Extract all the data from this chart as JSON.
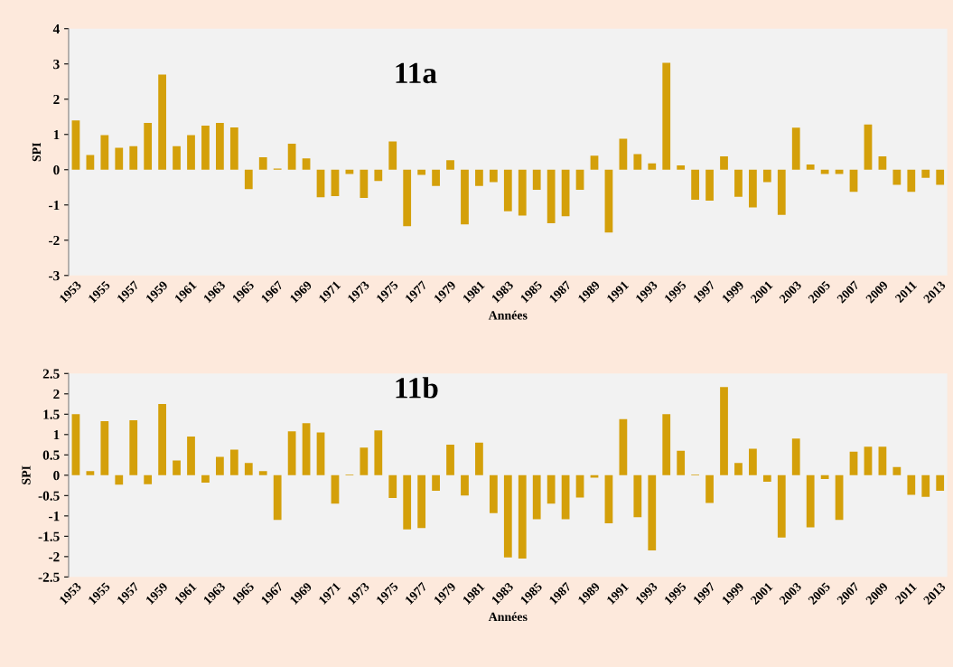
{
  "chart_data": [
    {
      "type": "bar",
      "xlabel": "Années",
      "ylabel": "SPI",
      "annotations": [
        "11a"
      ],
      "color": "#d4a00a",
      "grid": false,
      "categories": [
        "1953",
        null,
        "1955",
        null,
        "1957",
        null,
        "1959",
        null,
        "1961",
        null,
        "1963",
        null,
        "1965",
        null,
        "1967",
        null,
        "1969",
        null,
        "1971",
        null,
        "1973",
        null,
        "1975",
        null,
        "1977",
        null,
        "1979",
        null,
        "1981",
        null,
        "1983",
        null,
        "1985",
        null,
        "1987",
        null,
        "1989",
        null,
        "1991",
        null,
        "1993",
        null,
        "1995",
        null,
        "1997",
        null,
        "1999",
        null,
        "2001",
        null,
        "2003",
        null,
        "2005",
        null,
        "2007",
        null,
        "2009",
        null,
        "2011",
        null,
        "2013"
      ],
      "values": [
        1.4,
        0.42,
        0.98,
        0.62,
        0.67,
        1.33,
        2.7,
        0.67,
        0.98,
        1.25,
        1.33,
        1.2,
        -0.55,
        0.35,
        0.03,
        0.74,
        0.32,
        -0.78,
        -0.75,
        -0.12,
        -0.8,
        -0.32,
        0.8,
        -1.6,
        -0.15,
        -0.46,
        0.27,
        -1.55,
        -0.46,
        -0.35,
        -1.18,
        -1.3,
        -0.57,
        -1.52,
        -1.32,
        -0.57,
        0.4,
        -1.78,
        0.88,
        0.44,
        0.18,
        3.03,
        0.12,
        -0.85,
        -0.88,
        0.38,
        -0.77,
        -1.07,
        -0.35,
        -1.28,
        1.19,
        0.15,
        -0.12,
        -0.12,
        -0.63,
        1.28,
        0.38,
        -0.43,
        -0.63,
        -0.23,
        -0.43
      ],
      "ylim": [
        -3,
        4
      ],
      "yticks": [
        -3,
        -2,
        -1,
        0,
        1,
        2,
        3,
        4
      ]
    },
    {
      "type": "bar",
      "xlabel": "Années",
      "ylabel": "SPI",
      "annotations": [
        "11b"
      ],
      "color": "#d4a00a",
      "grid": false,
      "categories": [
        "1953",
        null,
        "1955",
        null,
        "1957",
        null,
        "1959",
        null,
        "1961",
        null,
        "1963",
        null,
        "1965",
        null,
        "1967",
        null,
        "1969",
        null,
        "1971",
        null,
        "1973",
        null,
        "1975",
        null,
        "1977",
        null,
        "1979",
        null,
        "1981",
        null,
        "1983",
        null,
        "1985",
        null,
        "1987",
        null,
        "1989",
        null,
        "1991",
        null,
        "1993",
        null,
        "1995",
        null,
        "1997",
        null,
        "1999",
        null,
        "2001",
        null,
        "2003",
        null,
        "2005",
        null,
        "2007",
        null,
        "2009",
        null,
        "2011",
        null,
        "2013"
      ],
      "values": [
        1.5,
        0.1,
        1.33,
        -0.23,
        1.35,
        -0.22,
        1.75,
        0.36,
        0.95,
        -0.18,
        0.45,
        0.63,
        0.3,
        0.1,
        -1.1,
        1.08,
        1.28,
        1.05,
        -0.7,
        0.02,
        0.68,
        1.1,
        -0.56,
        -1.33,
        -1.3,
        -0.38,
        0.75,
        -0.5,
        0.8,
        -0.93,
        -2.02,
        -2.05,
        -1.08,
        -0.7,
        -1.08,
        -0.55,
        -0.06,
        -1.18,
        1.38,
        -1.03,
        -1.85,
        1.5,
        0.6,
        0.02,
        -0.68,
        2.17,
        0.3,
        0.65,
        -0.16,
        -1.53,
        0.9,
        -1.28,
        -0.09,
        -1.1,
        0.58,
        0.7,
        0.7,
        0.2,
        -0.48,
        -0.53,
        -0.38
      ],
      "ylim": [
        -2.5,
        2.5
      ],
      "yticks": [
        -2.5,
        -2,
        -1.5,
        -1,
        -0.5,
        0,
        0.5,
        1,
        1.5,
        2,
        2.5
      ]
    }
  ]
}
